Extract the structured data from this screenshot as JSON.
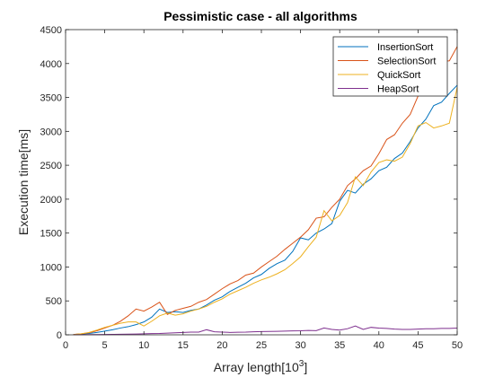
{
  "chart_data": {
    "type": "line",
    "title": "Pessimistic case - all algorithms",
    "xlabel": "Array length[10",
    "xlabel_sup": "3",
    "xlabel_suffix": "]",
    "ylabel": "Execution time[ms]",
    "xlim": [
      0,
      50
    ],
    "ylim": [
      0,
      4500
    ],
    "xticks": [
      0,
      5,
      10,
      15,
      20,
      25,
      30,
      35,
      40,
      45,
      50
    ],
    "yticks": [
      0,
      500,
      1000,
      1500,
      2000,
      2500,
      3000,
      3500,
      4000,
      4500
    ],
    "grid": false,
    "legend_position": "top-right",
    "x": [
      1,
      2,
      3,
      4,
      5,
      6,
      7,
      8,
      9,
      10,
      11,
      12,
      13,
      14,
      15,
      16,
      17,
      18,
      19,
      20,
      21,
      22,
      23,
      24,
      25,
      26,
      27,
      28,
      29,
      30,
      31,
      32,
      33,
      34,
      35,
      36,
      37,
      38,
      39,
      40,
      41,
      42,
      43,
      44,
      45,
      46,
      47,
      48,
      49,
      50
    ],
    "series": [
      {
        "name": "InsertionSort",
        "color": "#0072BD",
        "values": [
          5,
          10,
          20,
          35,
          55,
          75,
          100,
          120,
          150,
          190,
          260,
          380,
          330,
          340,
          330,
          360,
          380,
          440,
          510,
          560,
          640,
          700,
          760,
          840,
          890,
          980,
          1050,
          1100,
          1230,
          1430,
          1400,
          1500,
          1560,
          1640,
          1970,
          2130,
          2090,
          2220,
          2300,
          2420,
          2470,
          2600,
          2680,
          2850,
          3050,
          3180,
          3380,
          3430,
          3560,
          3680
        ]
      },
      {
        "name": "SelectionSort",
        "color": "#D95319",
        "values": [
          5,
          15,
          30,
          60,
          100,
          140,
          200,
          280,
          380,
          350,
          410,
          480,
          300,
          360,
          390,
          420,
          480,
          520,
          600,
          680,
          750,
          800,
          880,
          910,
          1000,
          1080,
          1160,
          1260,
          1350,
          1440,
          1550,
          1720,
          1740,
          1880,
          2000,
          2200,
          2300,
          2420,
          2490,
          2670,
          2880,
          2950,
          3120,
          3250,
          3520,
          3800,
          4000,
          4030,
          4040,
          4250
        ]
      },
      {
        "name": "QuickSort",
        "color": "#EDB120",
        "values": [
          5,
          15,
          35,
          70,
          110,
          140,
          170,
          190,
          190,
          130,
          200,
          280,
          320,
          290,
          310,
          350,
          380,
          420,
          480,
          530,
          600,
          650,
          700,
          760,
          810,
          850,
          900,
          960,
          1050,
          1150,
          1300,
          1440,
          1830,
          1680,
          1760,
          1950,
          2330,
          2200,
          2400,
          2540,
          2580,
          2560,
          2620,
          2820,
          3080,
          3130,
          3050,
          3080,
          3120,
          3650
        ]
      },
      {
        "name": "HeapSort",
        "color": "#7E2F8E",
        "values": [
          1,
          2,
          3,
          4,
          5,
          7,
          8,
          10,
          12,
          15,
          18,
          20,
          25,
          30,
          35,
          40,
          40,
          75,
          45,
          40,
          35,
          38,
          40,
          45,
          48,
          50,
          52,
          55,
          58,
          60,
          65,
          62,
          100,
          80,
          70,
          90,
          130,
          80,
          110,
          100,
          95,
          85,
          80,
          80,
          85,
          90,
          90,
          95,
          95,
          100
        ]
      }
    ]
  }
}
